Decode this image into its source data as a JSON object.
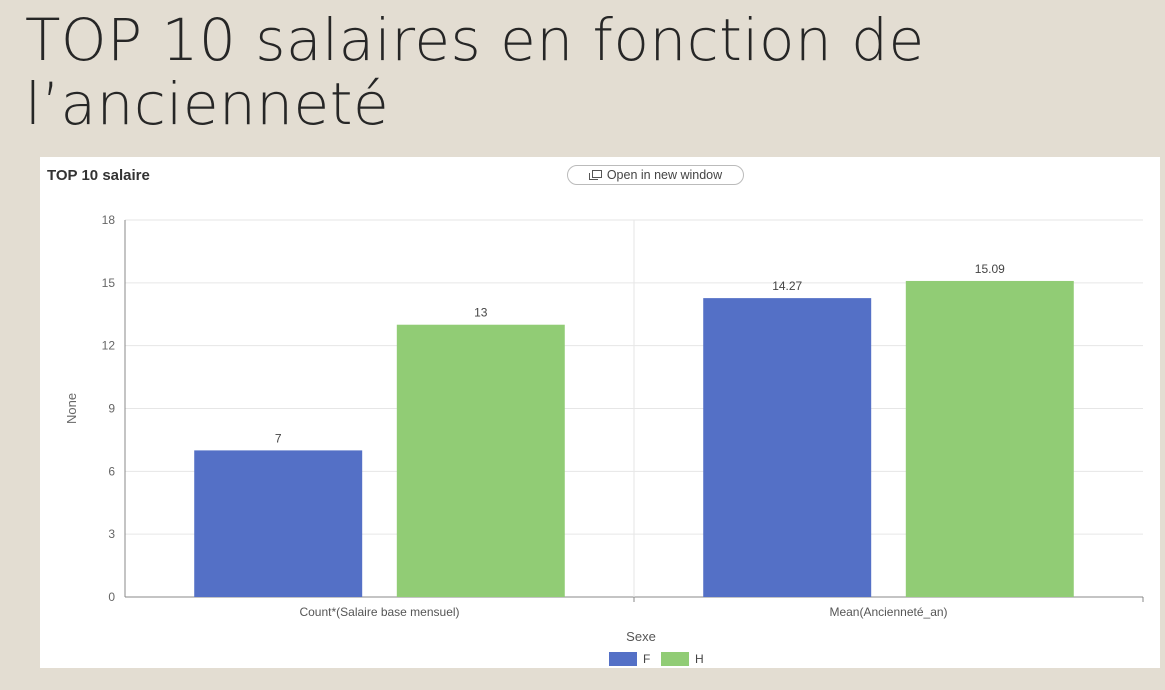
{
  "slide": {
    "title_line1": "TOP 10 salaires en fonction de",
    "title_line2": "l’ancienneté"
  },
  "panel": {
    "chart_title": "TOP 10 salaire",
    "open_button_label": "Open in new window",
    "open_icon": "open-in-new-window-icon"
  },
  "colors": {
    "F": "#5470c6",
    "H": "#91cc75",
    "background": "#e3ddd2"
  },
  "chart_data": {
    "type": "bar",
    "title": "TOP 10 salaire",
    "categories": [
      "Count*(Salaire base mensuel)",
      "Mean(Ancienneté_an)"
    ],
    "series": [
      {
        "name": "F",
        "values": [
          7,
          14.27
        ]
      },
      {
        "name": "H",
        "values": [
          13,
          15.09
        ]
      }
    ],
    "data_labels": [
      [
        "7",
        "14.27"
      ],
      [
        "13",
        "15.09"
      ]
    ],
    "xlabel": "Sexe",
    "ylabel": "None",
    "ylim": [
      0,
      18
    ],
    "yticks": [
      0,
      3,
      6,
      9,
      12,
      15,
      18
    ],
    "grid": true,
    "legend": "bottom-center"
  }
}
